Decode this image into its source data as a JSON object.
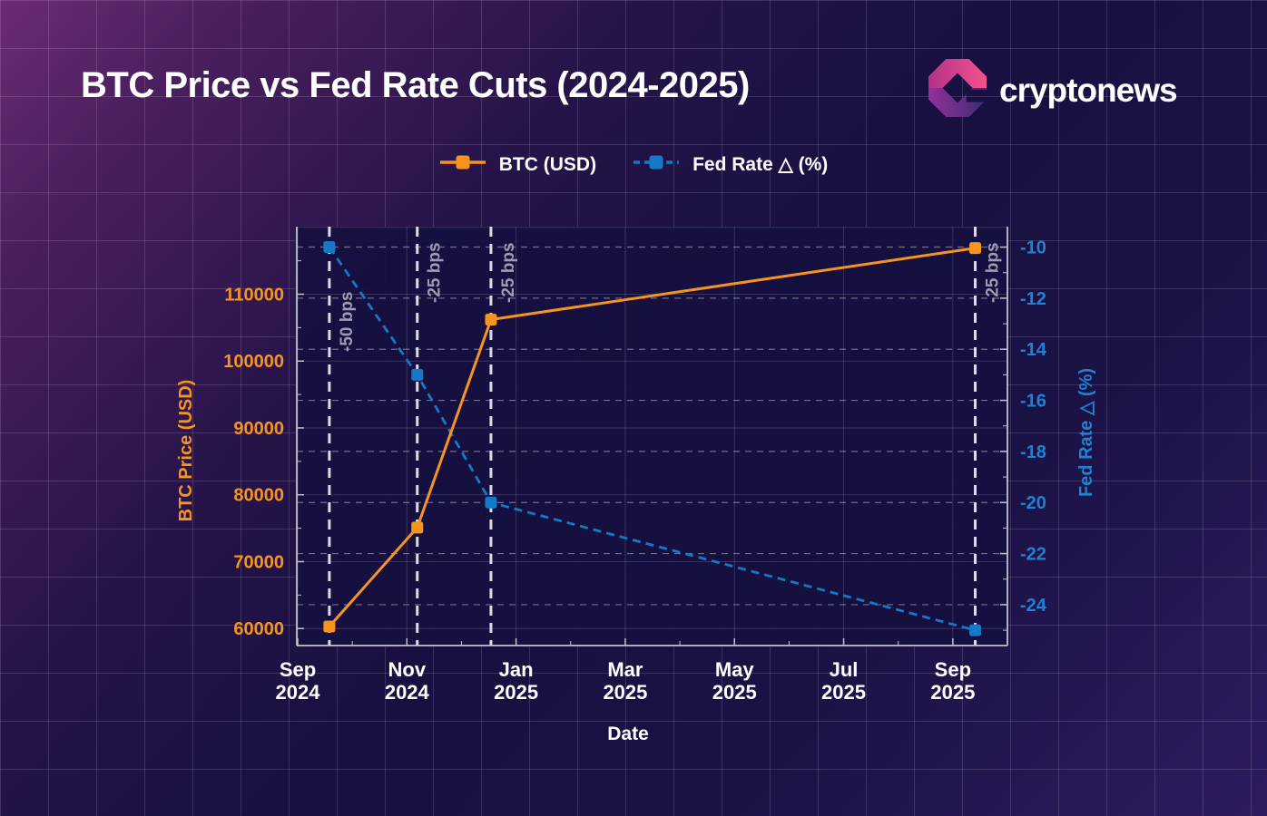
{
  "brand": {
    "logo_text": "cryptonews"
  },
  "chart_data": {
    "type": "line",
    "title": "BTC Price vs Fed Rate Cuts (2024-2025)",
    "xlabel": "Date",
    "legend_position": "top-center",
    "x_axis": {
      "tick_labels": [
        [
          "Sep",
          "2024"
        ],
        [
          "Nov",
          "2024"
        ],
        [
          "Jan",
          "2025"
        ],
        [
          "Mar",
          "2025"
        ],
        [
          "May",
          "2025"
        ],
        [
          "Jul",
          "2025"
        ],
        [
          "Sep",
          "2025"
        ]
      ],
      "tick_months": [
        0,
        2,
        4,
        6,
        8,
        10,
        12
      ],
      "minor_tick_months": [
        1,
        3,
        5,
        7,
        9,
        11,
        13
      ],
      "range_months": [
        0,
        13
      ]
    },
    "left_axis": {
      "label": "BTC Price (USD)",
      "color": "#F7941E",
      "tick_values": [
        60000,
        70000,
        80000,
        90000,
        100000,
        110000
      ],
      "grid_extra": [
        120000
      ],
      "minor_tick_values": [
        65000,
        75000,
        85000,
        95000,
        105000,
        115000
      ],
      "range": [
        57450,
        120100
      ]
    },
    "right_axis": {
      "label": "Fed Rate △ (%)",
      "color": "#1E82D4",
      "tick_values": [
        -10,
        -12,
        -14,
        -16,
        -18,
        -20,
        -22,
        -24
      ],
      "minor_tick_values": [
        -11,
        -13,
        -15,
        -17,
        -19,
        -21,
        -23,
        -25
      ],
      "range": [
        -25.6,
        -9.2
      ],
      "gridline_style": "dashed"
    },
    "series": [
      {
        "name": "BTC (USD)",
        "axis": "left",
        "color": "#F7941E",
        "line_style": "solid",
        "marker": "square",
        "points": [
          {
            "x_month": 0.58,
            "value": 60300
          },
          {
            "x_month": 2.19,
            "value": 75100
          },
          {
            "x_month": 3.54,
            "value": 106200
          },
          {
            "x_month": 12.41,
            "value": 116900
          }
        ]
      },
      {
        "name": "Fed Rate △ (%)",
        "axis": "right",
        "color": "#1778C8",
        "line_style": "dashed",
        "marker": "square",
        "points": [
          {
            "x_month": 0.58,
            "value": -10
          },
          {
            "x_month": 2.19,
            "value": -15
          },
          {
            "x_month": 3.54,
            "value": -20
          },
          {
            "x_month": 12.41,
            "value": -25
          }
        ]
      }
    ],
    "events": [
      {
        "label": "-50 bps",
        "x_month": 0.58
      },
      {
        "label": "-25 bps",
        "x_month": 2.19
      },
      {
        "label": "-25 bps",
        "x_month": 3.54
      },
      {
        "label": "-25 bps",
        "x_month": 12.41
      }
    ],
    "grid": {
      "horizontal_solid": "left-axis-ticks",
      "horizontal_dashed": "right-axis-ticks",
      "vertical_solid": "x-ticks"
    },
    "colors": {
      "background_accent": "#2E1C5E",
      "event_line": "#DCDBE6",
      "event_label": "#A19BB1",
      "spine": "#C2C0D0"
    }
  }
}
